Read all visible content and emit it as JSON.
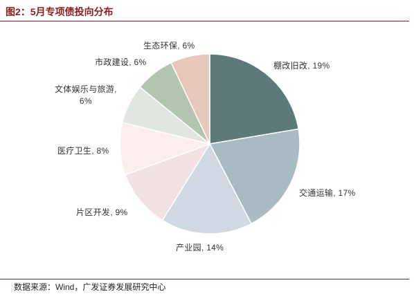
{
  "source": "数据来源：Wind，广发证券发展研究中心",
  "chart_data": {
    "type": "pie",
    "title": "图2：5月专项债投向分布",
    "unit": "%",
    "categories": [
      "棚改旧改",
      "交通运输",
      "产业园",
      "片区开发",
      "医疗卫生",
      "文体娱乐与旅游",
      "市政建设",
      "生态环保"
    ],
    "values": [
      19,
      17,
      14,
      9,
      8,
      6,
      6,
      6
    ],
    "colors": [
      "#5B7A79",
      "#A9BBC2",
      "#D2D8E1",
      "#F1E1E2",
      "#FCEEEF",
      "#DFE5DF",
      "#B3C4B1",
      "#E6C7B9"
    ],
    "start": "12 o'clock",
    "direction": "clockwise",
    "legend": "none"
  }
}
